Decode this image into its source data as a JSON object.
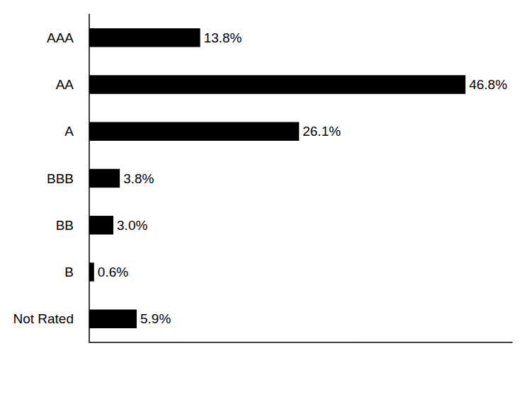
{
  "chart_data": {
    "type": "bar",
    "orientation": "horizontal",
    "categories": [
      "AAA",
      "AA",
      "A",
      "BBB",
      "BB",
      "B",
      "Not Rated"
    ],
    "values": [
      13.8,
      46.8,
      26.1,
      3.8,
      3.0,
      0.6,
      5.9
    ],
    "value_labels": [
      "13.8%",
      "46.8%",
      "26.1%",
      "3.8%",
      "3.0%",
      "0.6%",
      "5.9%"
    ],
    "color": "#000000",
    "xlim": [
      0,
      52.6
    ],
    "data_labels": true,
    "tick_labels": "y",
    "grid": false
  }
}
